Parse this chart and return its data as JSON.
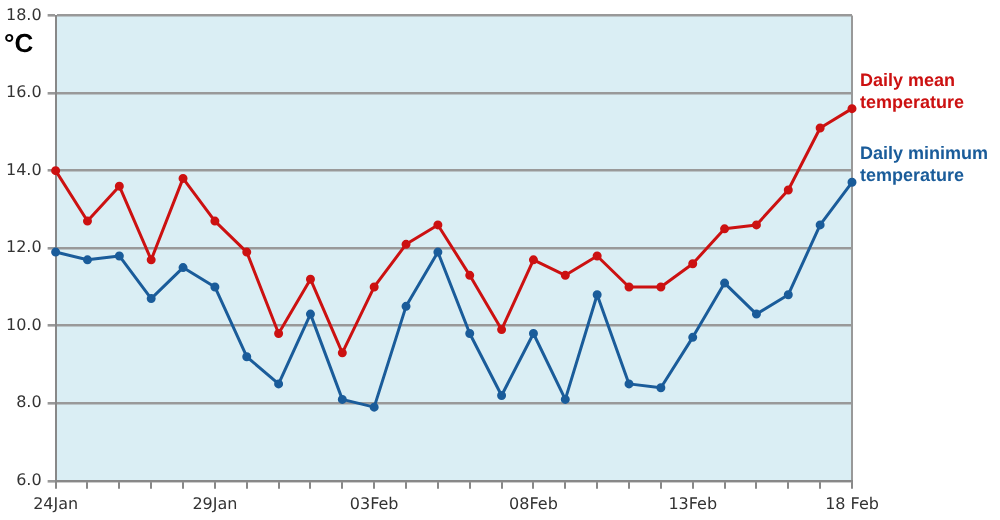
{
  "chart_data": {
    "type": "line",
    "ylabel": "°C",
    "categories": [
      "24Jan",
      null,
      null,
      null,
      null,
      "29Jan",
      null,
      null,
      null,
      null,
      "03Feb",
      null,
      null,
      null,
      null,
      "08Feb",
      null,
      null,
      null,
      null,
      "13Feb",
      null,
      null,
      null,
      null,
      "18 Feb"
    ],
    "series": [
      {
        "name": "Daily mean temperature",
        "color": "#cc1111",
        "values": [
          14.0,
          12.7,
          13.6,
          11.7,
          13.8,
          12.7,
          11.9,
          9.8,
          11.2,
          9.3,
          11.0,
          12.1,
          12.6,
          11.3,
          9.9,
          11.7,
          11.3,
          11.8,
          11.0,
          11.0,
          11.6,
          12.5,
          12.6,
          13.5,
          15.1,
          15.6
        ]
      },
      {
        "name": "Daily minimum temperature",
        "color": "#1a5c9a",
        "values": [
          11.9,
          11.7,
          11.8,
          10.7,
          11.5,
          11.0,
          9.2,
          8.5,
          10.3,
          8.1,
          7.9,
          10.5,
          11.9,
          9.8,
          8.2,
          9.8,
          8.1,
          10.8,
          8.5,
          8.4,
          9.7,
          11.1,
          10.3,
          10.8,
          12.6,
          13.7
        ]
      }
    ],
    "ylim": [
      6,
      18
    ],
    "yticks": [
      {
        "value": 6,
        "label": "6.0"
      },
      {
        "value": 8,
        "label": "8.0"
      },
      {
        "value": 10,
        "label": "10.0"
      },
      {
        "value": 12,
        "label": "12.0"
      },
      {
        "value": 14,
        "label": "14.0"
      },
      {
        "value": 16,
        "label": "16.0"
      },
      {
        "value": 18,
        "label": "18.0"
      }
    ],
    "grid": "y",
    "legend": "right",
    "marker": "circle",
    "line_style": "solid"
  }
}
